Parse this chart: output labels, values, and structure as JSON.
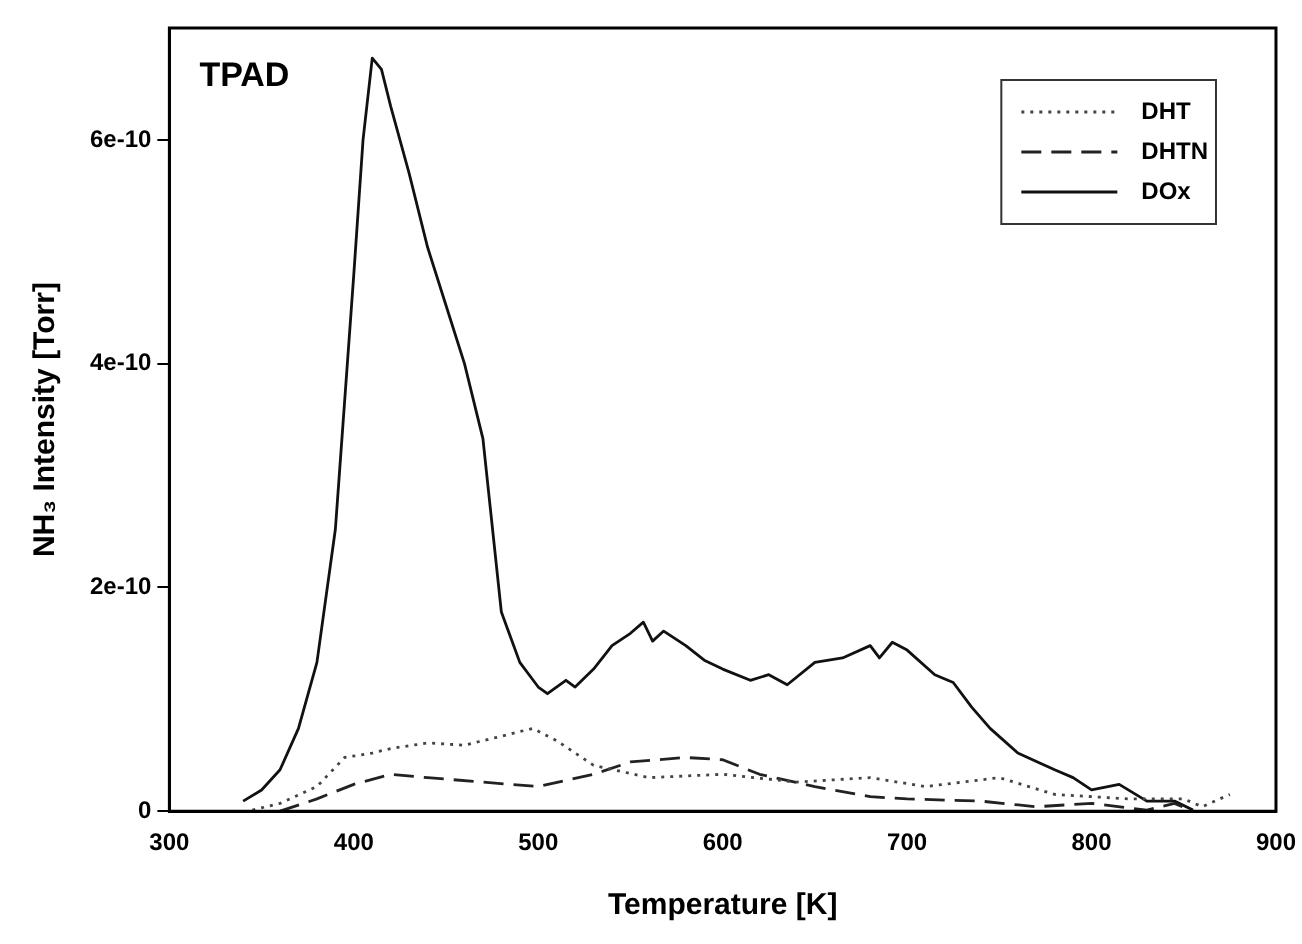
{
  "chart_data": {
    "type": "line",
    "xlabel": "Temperature [K]",
    "ylabel": "NH₃ Intensity [Torr]",
    "annotations": [
      "TPAD"
    ],
    "xlim": [
      300,
      900
    ],
    "xticks": [
      300,
      400,
      500,
      600,
      700,
      800,
      900
    ],
    "ylim": [
      0,
      7e-10
    ],
    "yticks": [
      {
        "value": 0,
        "label": "0"
      },
      {
        "value": 2e-10,
        "label": "2e-10"
      },
      {
        "value": 4e-10,
        "label": "4e-10"
      },
      {
        "value": 6e-10,
        "label": "6e-10"
      }
    ],
    "grid": false,
    "legend": "top right",
    "marker": "none",
    "series": [
      {
        "name": "DHT",
        "color": "#444444",
        "line_style": "dotted",
        "x": [
          345,
          360,
          380,
          395,
          410,
          420,
          440,
          460,
          480,
          497,
          510,
          530,
          560,
          600,
          640,
          680,
          710,
          750,
          780,
          820,
          850,
          860,
          875
        ],
        "values": [
          1e-12,
          7e-12,
          2.2e-11,
          4.8e-11,
          5.2e-11,
          5.6e-11,
          6.1e-11,
          5.9e-11,
          6.7e-11,
          7.4e-11,
          6.3e-11,
          4.1e-11,
          3e-11,
          3.3e-11,
          2.6e-11,
          3e-11,
          2.2e-11,
          3e-11,
          1.5e-11,
          1.1e-11,
          1.1e-11,
          4e-12,
          1.5e-11
        ]
      },
      {
        "name": "DHTN",
        "color": "#222222",
        "line_style": "dashed",
        "x": [
          360,
          380,
          400,
          420,
          440,
          470,
          500,
          530,
          550,
          580,
          600,
          620,
          650,
          680,
          700,
          740,
          770,
          800,
          830,
          845,
          855
        ],
        "values": [
          0,
          1.1e-11,
          2.4e-11,
          3.3e-11,
          3e-11,
          2.6e-11,
          2.2e-11,
          3.3e-11,
          4.4e-11,
          4.8e-11,
          4.6e-11,
          3.3e-11,
          2.2e-11,
          1.3e-11,
          1.1e-11,
          9e-12,
          4e-12,
          7e-12,
          1e-12,
          7e-12,
          0
        ]
      },
      {
        "name": "DOx",
        "color": "#111111",
        "line_style": "solid",
        "x": [
          340,
          350,
          360,
          370,
          380,
          390,
          400,
          405,
          410,
          415,
          420,
          430,
          440,
          450,
          460,
          470,
          480,
          490,
          500,
          505,
          515,
          520,
          530,
          540,
          550,
          557,
          562,
          568,
          580,
          590,
          600,
          615,
          625,
          635,
          650,
          665,
          680,
          685,
          692,
          700,
          715,
          725,
          735,
          745,
          760,
          780,
          790,
          800,
          815,
          830,
          845,
          855
        ],
        "values": [
          9e-12,
          1.9e-11,
          3.7e-11,
          7.4e-11,
          1.33e-10,
          2.52e-10,
          4.8e-10,
          6e-10,
          6.73e-10,
          6.63e-10,
          6.3e-10,
          5.7e-10,
          5.04e-10,
          4.52e-10,
          4e-10,
          3.33e-10,
          1.78e-10,
          1.33e-10,
          1.11e-10,
          1.05e-10,
          1.17e-10,
          1.11e-10,
          1.27e-10,
          1.48e-10,
          1.59e-10,
          1.69e-10,
          1.52e-10,
          1.61e-10,
          1.48e-10,
          1.35e-10,
          1.27e-10,
          1.17e-10,
          1.22e-10,
          1.13e-10,
          1.33e-10,
          1.37e-10,
          1.48e-10,
          1.37e-10,
          1.51e-10,
          1.44e-10,
          1.22e-10,
          1.15e-10,
          9.3e-11,
          7.4e-11,
          5.2e-11,
          3.7e-11,
          3e-11,
          1.9e-11,
          2.4e-11,
          9e-12,
          9e-12,
          1e-12
        ]
      }
    ]
  }
}
